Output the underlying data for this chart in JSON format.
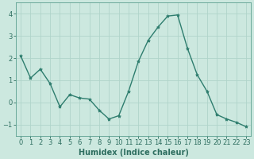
{
  "x": [
    0,
    1,
    2,
    3,
    4,
    5,
    6,
    7,
    8,
    9,
    10,
    11,
    12,
    13,
    14,
    15,
    16,
    17,
    18,
    19,
    20,
    21,
    22,
    23
  ],
  "y": [
    2.1,
    1.1,
    1.5,
    0.85,
    -0.2,
    0.35,
    0.2,
    0.15,
    -0.35,
    -0.75,
    -0.6,
    0.5,
    1.85,
    2.8,
    3.4,
    3.9,
    3.95,
    2.45,
    1.25,
    0.5,
    -0.55,
    -0.75,
    -0.9,
    -1.1
  ],
  "line_color": "#2e7d6e",
  "marker": "*",
  "marker_size": 3,
  "bg_color": "#cce8df",
  "grid_color": "#b0d4ca",
  "xlabel": "Humidex (Indice chaleur)",
  "ylim": [
    -1.5,
    4.5
  ],
  "xlim": [
    -0.5,
    23.5
  ],
  "yticks": [
    -1,
    0,
    1,
    2,
    3,
    4
  ],
  "xticks": [
    0,
    1,
    2,
    3,
    4,
    5,
    6,
    7,
    8,
    9,
    10,
    11,
    12,
    13,
    14,
    15,
    16,
    17,
    18,
    19,
    20,
    21,
    22,
    23
  ],
  "tick_color": "#2e6e60",
  "label_fontsize": 7,
  "tick_fontsize": 6,
  "spine_color": "#5a9e8e",
  "line_width": 1.0
}
